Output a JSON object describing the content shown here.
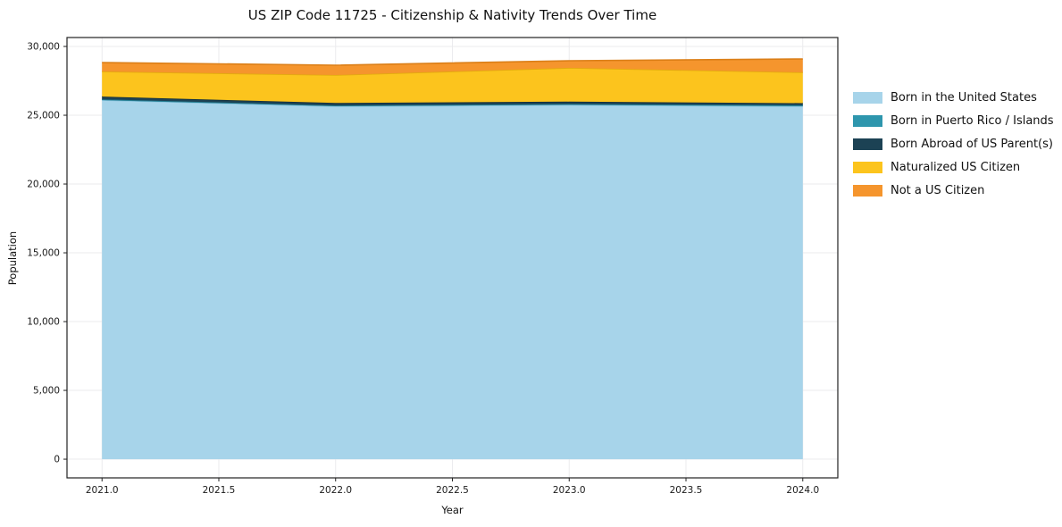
{
  "title": "US ZIP Code 11725 - Citizenship & Nativity Trends Over Time",
  "chart_data": {
    "type": "area",
    "stacked": true,
    "title": "US ZIP Code 11725 - Citizenship & Nativity Trends Over Time",
    "xlabel": "Year",
    "ylabel": "Population",
    "x": [
      2021,
      2022,
      2023,
      2024
    ],
    "series": [
      {
        "name": "Born in the United States",
        "values": [
          26100,
          25650,
          25750,
          25650
        ],
        "fill": "#A7D4EA",
        "line": "#8AC2DC"
      },
      {
        "name": "Born in Puerto Rico / Islands",
        "values": [
          60,
          60,
          60,
          80
        ],
        "fill": "#2E96AD",
        "line": "#237A8E"
      },
      {
        "name": "Born Abroad of US Parent(s)",
        "values": [
          200,
          180,
          180,
          150
        ],
        "fill": "#1C4254",
        "line": "#132E3B"
      },
      {
        "name": "Naturalized US Citizen",
        "values": [
          1820,
          2030,
          2450,
          2240
        ],
        "fill": "#FCC41D",
        "line": "#E2AB0D"
      },
      {
        "name": "Not a US Citizen",
        "values": [
          650,
          720,
          520,
          970
        ],
        "fill": "#F5952D",
        "line": "#DB7F18"
      }
    ],
    "xlim": [
      2020.85,
      2024.15
    ],
    "ylim": [
      -1360,
      30650
    ],
    "x_ticks": [
      {
        "v": 2021.0,
        "label": "2021.0"
      },
      {
        "v": 2021.5,
        "label": "2021.5"
      },
      {
        "v": 2022.0,
        "label": "2022.0"
      },
      {
        "v": 2022.5,
        "label": "2022.5"
      },
      {
        "v": 2023.0,
        "label": "2023.0"
      },
      {
        "v": 2023.5,
        "label": "2023.5"
      },
      {
        "v": 2024.0,
        "label": "2024.0"
      }
    ],
    "y_ticks": [
      {
        "v": 0,
        "label": "0"
      },
      {
        "v": 5000,
        "label": "5,000"
      },
      {
        "v": 10000,
        "label": "10,000"
      },
      {
        "v": 15000,
        "label": "15,000"
      },
      {
        "v": 20000,
        "label": "20,000"
      },
      {
        "v": 25000,
        "label": "25,000"
      },
      {
        "v": 30000,
        "label": "30,000"
      }
    ],
    "grid": true,
    "grid_color": "#ebebee",
    "frame_color": "#222222",
    "tick_text_color": "#1a1a1a",
    "legend_position": "right"
  }
}
